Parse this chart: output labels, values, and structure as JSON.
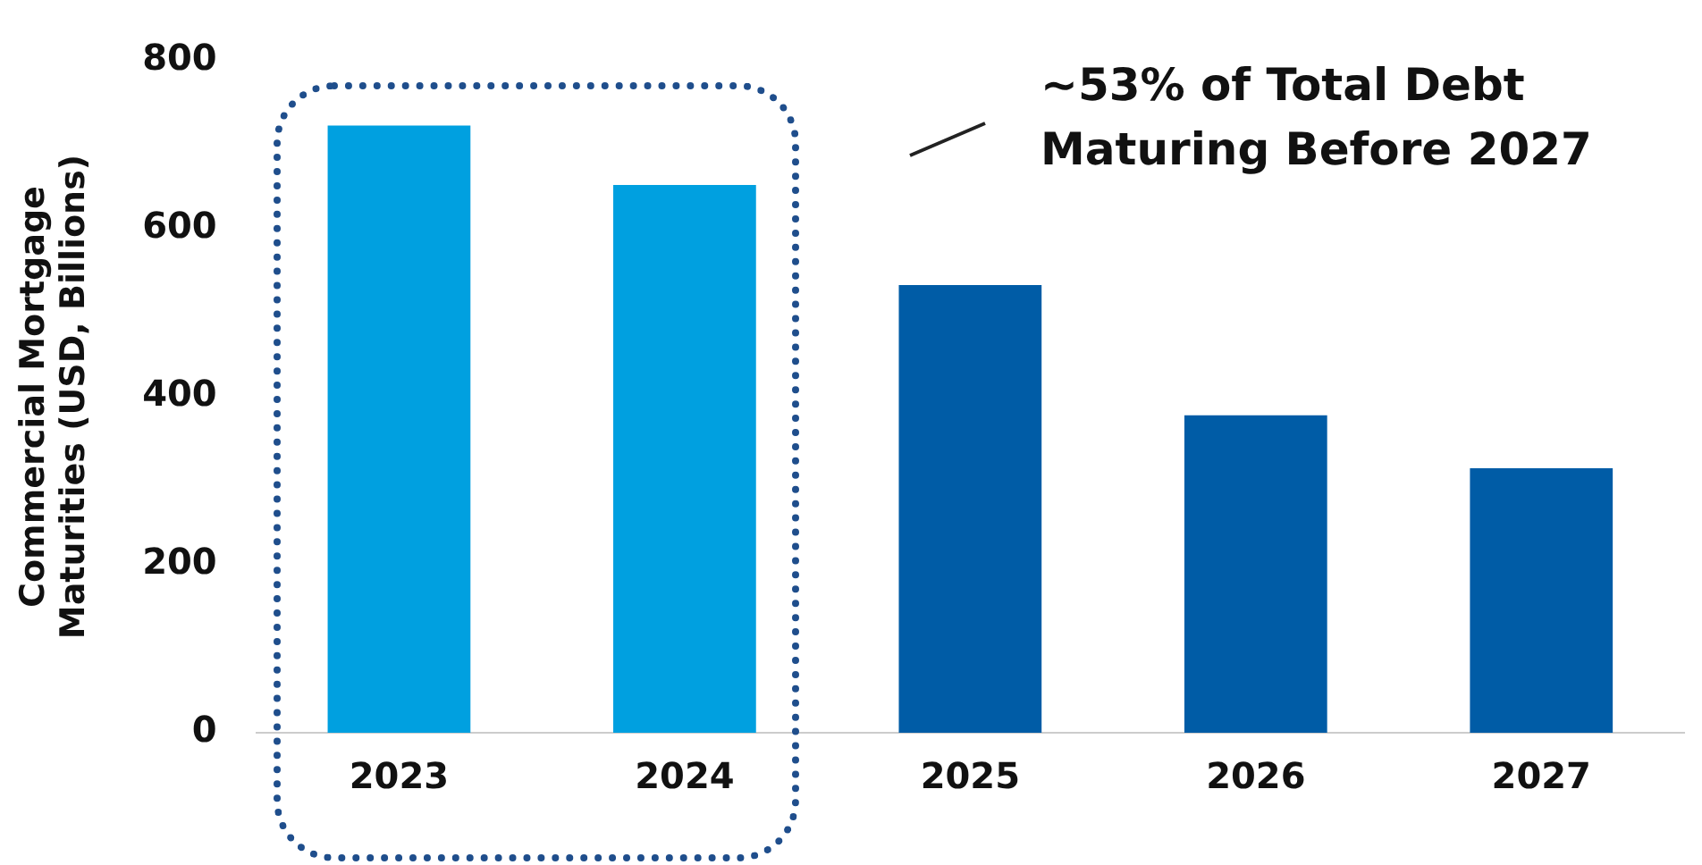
{
  "chart_data": {
    "type": "bar",
    "ylabel": "Commercial Mortgage Maturities (USD, Billions)",
    "categories": [
      "2023",
      "2024",
      "2025",
      "2026",
      "2027"
    ],
    "values": [
      723,
      652,
      533,
      378,
      315
    ],
    "colors": [
      "#00a0e0",
      "#00a0e0",
      "#005ca6",
      "#005ca6",
      "#005ca6"
    ],
    "ylim": [
      0,
      800
    ],
    "yticks": [
      0,
      200,
      400,
      600,
      800
    ],
    "grid": false,
    "legend": false,
    "annotations": [
      "~53% of Total Debt Maturing Before 2027"
    ]
  }
}
